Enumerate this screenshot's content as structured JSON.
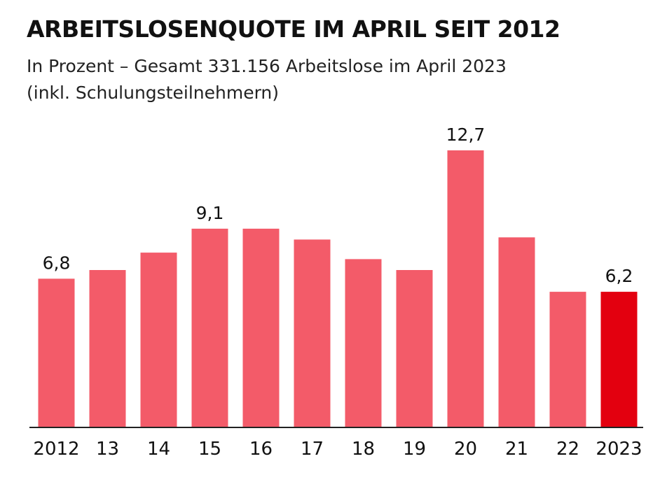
{
  "chart_data": {
    "type": "bar",
    "title": "ARBEITSLOSENQUOTE IM APRIL SEIT 2012",
    "subtitle_lines": [
      "In Prozent – Gesamt 331.156 Arbeitslose im April 2023",
      "(inkl. Schulungsteilnehmern)"
    ],
    "categories": [
      "2012",
      "13",
      "14",
      "15",
      "16",
      "17",
      "18",
      "19",
      "20",
      "21",
      "22",
      "2023"
    ],
    "values": [
      6.8,
      7.2,
      8.0,
      9.1,
      9.1,
      8.6,
      7.7,
      7.2,
      12.7,
      8.7,
      6.2,
      6.2
    ],
    "data_labels": [
      {
        "index": 0,
        "text": "6,8"
      },
      {
        "index": 3,
        "text": "9,1"
      },
      {
        "index": 8,
        "text": "12,7"
      },
      {
        "index": 11,
        "text": "6,2"
      }
    ],
    "highlight_index": 11,
    "colors": {
      "bar": "#f35b69",
      "highlight": "#e3000f",
      "axis": "#222222",
      "text": "#111111"
    },
    "ylim": [
      0,
      13.5
    ],
    "grid": false,
    "legend": "none"
  }
}
